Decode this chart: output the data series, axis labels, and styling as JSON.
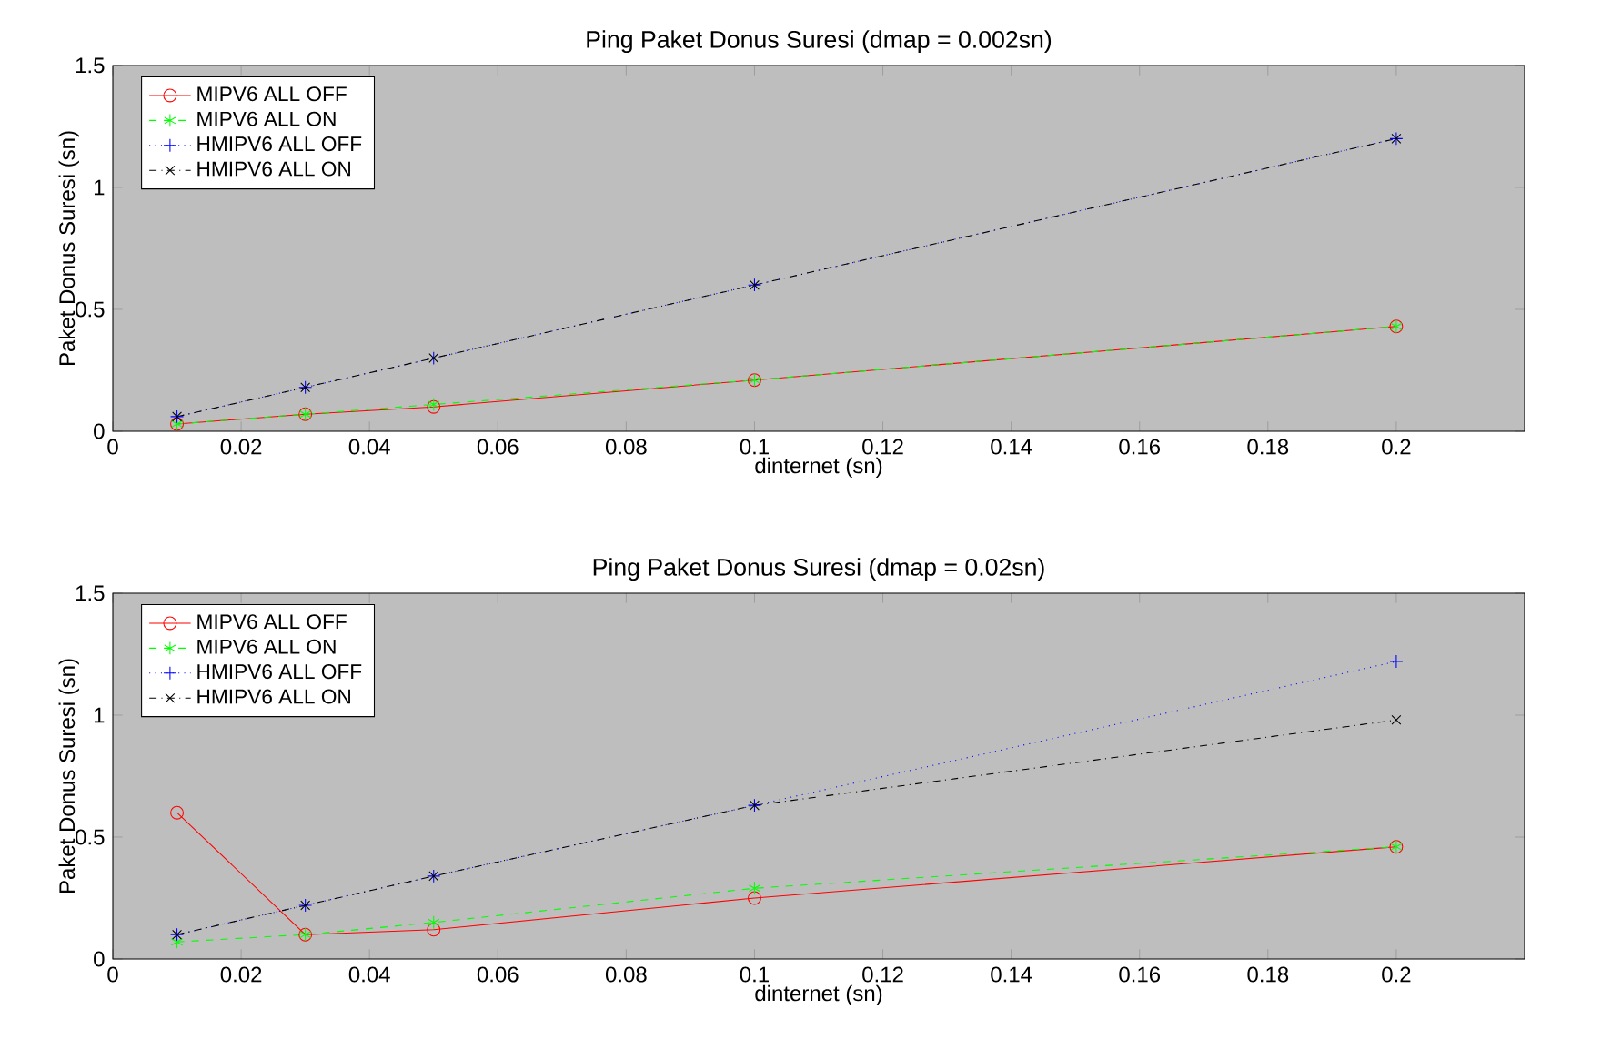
{
  "chart_data": [
    {
      "type": "line",
      "title": "Ping Paket Donus Suresi (dmap = 0.002sn)",
      "xlabel": "dinternet (sn)",
      "ylabel": "Paket Donus Suresi (sn)",
      "x": [
        0.01,
        0.03,
        0.05,
        0.1,
        0.2
      ],
      "xlim": [
        0,
        0.22
      ],
      "xticks": [
        0,
        0.02,
        0.04,
        0.06,
        0.08,
        0.1,
        0.12,
        0.14,
        0.16,
        0.18,
        0.2
      ],
      "ylim": [
        0,
        1.5
      ],
      "yticks": [
        0,
        0.5,
        1,
        1.5
      ],
      "legend": "top left",
      "grid": false,
      "series": [
        {
          "name": "MIPV6 ALL OFF",
          "color": "#ff0000",
          "marker": "circle",
          "line_style": "solid",
          "values": [
            0.03,
            0.07,
            0.1,
            0.21,
            0.43
          ]
        },
        {
          "name": "MIPV6 ALL ON",
          "color": "#00ff00",
          "marker": "cross",
          "line_style": "dashed",
          "values": [
            0.03,
            0.07,
            0.11,
            0.21,
            0.43
          ]
        },
        {
          "name": "HMIPV6 ALL OFF",
          "color": "#0000ff",
          "marker": "plus",
          "line_style": "dotted",
          "values": [
            0.06,
            0.18,
            0.3,
            0.6,
            1.2
          ]
        },
        {
          "name": "HMIPV6 ALL ON",
          "color": "#000000",
          "marker": "x",
          "line_style": "dashdot",
          "values": [
            0.06,
            0.18,
            0.3,
            0.6,
            1.2
          ]
        }
      ]
    },
    {
      "type": "line",
      "title": "Ping Paket Donus Suresi (dmap = 0.02sn)",
      "xlabel": "dinternet (sn)",
      "ylabel": "Paket Donus Suresi (sn)",
      "x": [
        0.01,
        0.03,
        0.05,
        0.1,
        0.2
      ],
      "xlim": [
        0,
        0.22
      ],
      "xticks": [
        0,
        0.02,
        0.04,
        0.06,
        0.08,
        0.1,
        0.12,
        0.14,
        0.16,
        0.18,
        0.2
      ],
      "ylim": [
        0,
        1.5
      ],
      "yticks": [
        0,
        0.5,
        1,
        1.5
      ],
      "legend": "top left",
      "grid": false,
      "series": [
        {
          "name": "MIPV6 ALL OFF",
          "color": "#ff0000",
          "marker": "circle",
          "line_style": "solid",
          "values": [
            0.6,
            0.1,
            0.12,
            0.25,
            0.46
          ]
        },
        {
          "name": "MIPV6 ALL ON",
          "color": "#00ff00",
          "marker": "cross",
          "line_style": "dashed",
          "values": [
            0.07,
            0.1,
            0.15,
            0.29,
            0.46
          ]
        },
        {
          "name": "HMIPV6 ALL OFF",
          "color": "#0000ff",
          "marker": "plus",
          "line_style": "dotted",
          "values": [
            0.1,
            0.22,
            0.34,
            0.63,
            1.22
          ]
        },
        {
          "name": "HMIPV6 ALL ON",
          "color": "#000000",
          "marker": "x",
          "line_style": "dashdot",
          "values": [
            0.1,
            0.22,
            0.34,
            0.63,
            0.98
          ]
        }
      ]
    }
  ]
}
